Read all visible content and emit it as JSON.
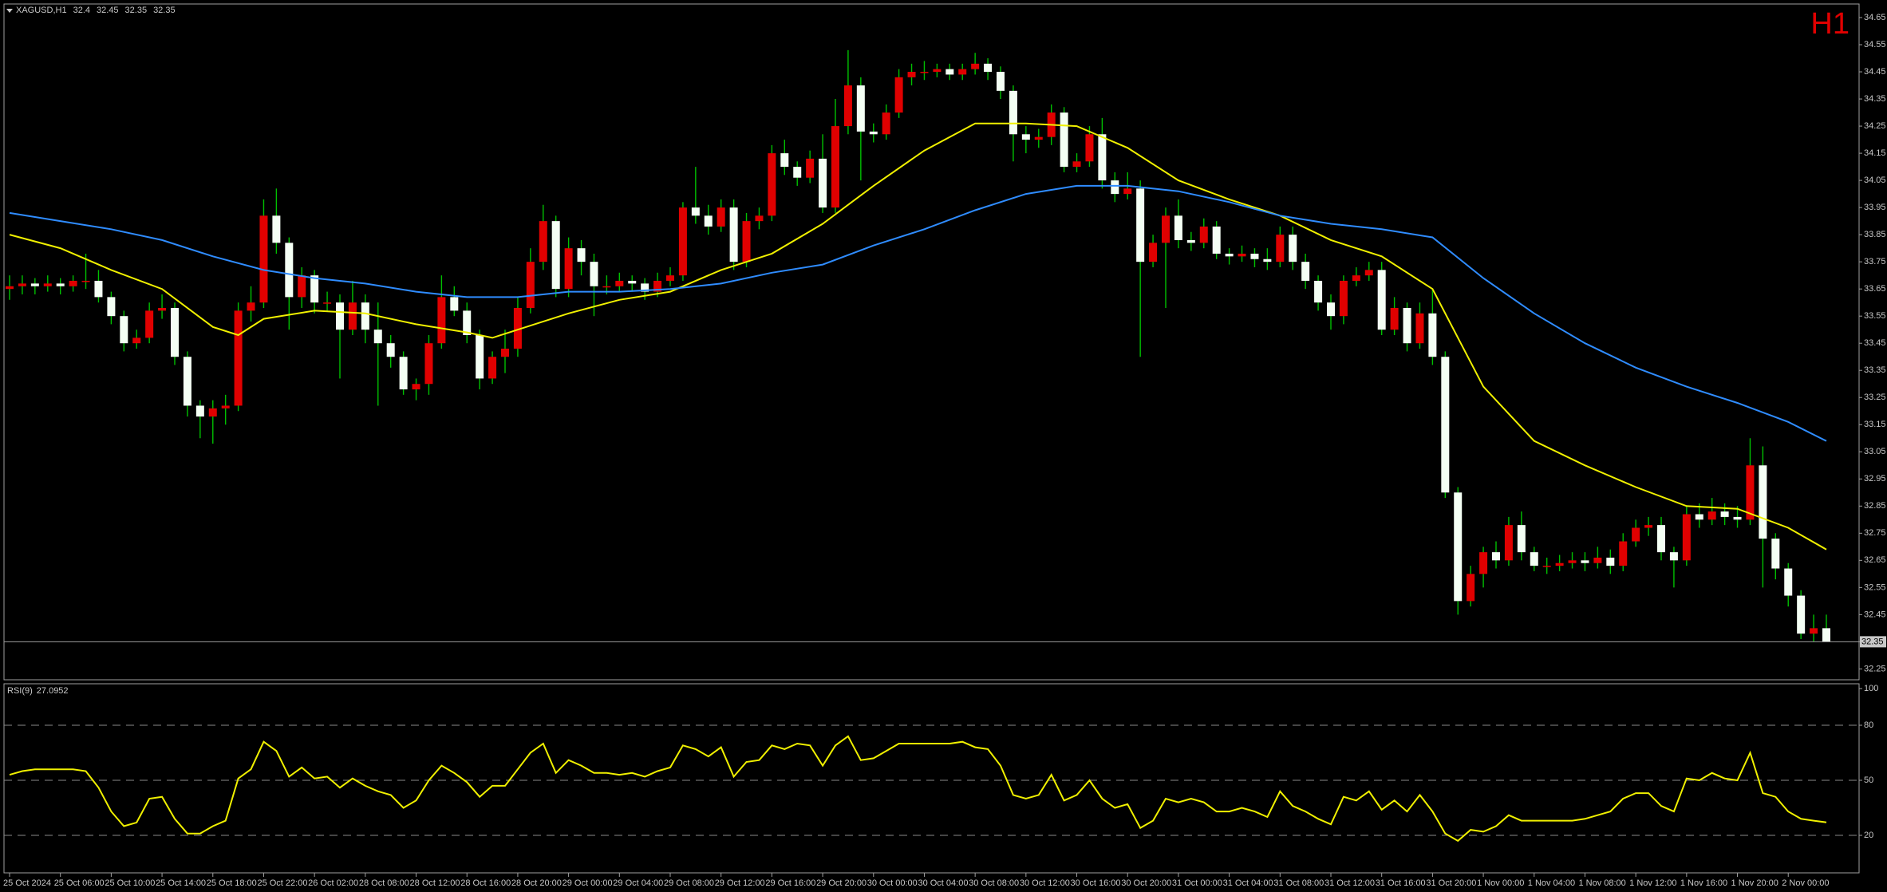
{
  "chart_data": [
    {
      "type": "candlestick",
      "title": "XAGUSD,H1",
      "badge": "H1",
      "open": [
        33.65,
        33.66,
        33.67,
        33.66,
        33.67,
        33.66,
        33.68,
        33.68,
        33.62,
        33.55,
        33.45,
        33.47,
        33.57,
        33.58,
        33.4,
        33.22,
        33.18,
        33.21,
        33.22,
        33.57,
        33.6,
        33.92,
        33.82,
        33.62,
        33.7,
        33.6,
        33.6,
        33.5,
        33.6,
        33.5,
        33.45,
        33.4,
        33.28,
        33.3,
        33.45,
        33.62,
        33.57,
        33.48,
        33.32,
        33.4,
        33.43,
        33.58,
        33.75,
        33.9,
        33.65,
        33.8,
        33.75,
        33.66,
        33.66,
        33.68,
        33.67,
        33.64,
        33.68,
        33.7,
        33.95,
        33.92,
        33.88,
        33.95,
        33.75,
        33.9,
        33.92,
        34.15,
        34.1,
        34.06,
        34.13,
        33.95,
        34.25,
        34.4,
        34.23,
        34.22,
        34.3,
        34.43,
        34.45,
        34.45,
        34.46,
        34.44,
        34.46,
        34.48,
        34.45,
        34.38,
        34.22,
        34.2,
        34.21,
        34.3,
        34.1,
        34.12,
        34.22,
        34.05,
        34.0,
        34.02,
        33.75,
        33.82,
        33.92,
        33.83,
        33.82,
        33.88,
        33.78,
        33.77,
        33.78,
        33.76,
        33.75,
        33.85,
        33.75,
        33.68,
        33.6,
        33.55,
        33.68,
        33.7,
        33.72,
        33.5,
        33.58,
        33.45,
        33.56,
        33.4,
        32.9,
        32.5,
        32.6,
        32.68,
        32.65,
        32.78,
        32.68,
        32.63,
        32.63,
        32.64,
        32.65,
        32.64,
        32.66,
        32.63,
        32.72,
        32.77,
        32.78,
        32.68,
        32.65,
        32.82,
        32.8,
        32.83,
        32.81,
        32.8,
        33.0,
        32.73,
        32.62,
        32.52,
        32.38,
        32.4
      ],
      "high": [
        33.7,
        33.7,
        33.69,
        33.7,
        33.69,
        33.7,
        33.78,
        33.72,
        33.64,
        33.57,
        33.5,
        33.6,
        33.63,
        33.6,
        33.42,
        33.24,
        33.24,
        33.26,
        33.6,
        33.66,
        33.98,
        34.02,
        33.84,
        33.73,
        33.72,
        33.64,
        33.63,
        33.68,
        33.63,
        33.6,
        33.48,
        33.42,
        33.32,
        33.48,
        33.7,
        33.66,
        33.6,
        33.5,
        33.42,
        33.5,
        33.62,
        33.8,
        33.96,
        33.92,
        33.84,
        33.83,
        33.78,
        33.7,
        33.71,
        33.7,
        33.69,
        33.71,
        33.73,
        33.97,
        34.1,
        33.96,
        33.98,
        33.98,
        33.93,
        33.95,
        34.18,
        34.2,
        34.12,
        34.16,
        34.22,
        34.35,
        34.53,
        34.43,
        34.26,
        34.33,
        34.46,
        34.48,
        34.49,
        34.48,
        34.48,
        34.48,
        34.52,
        34.5,
        34.47,
        34.4,
        34.25,
        34.24,
        34.33,
        34.32,
        34.15,
        34.25,
        34.28,
        34.08,
        34.08,
        34.05,
        33.85,
        33.95,
        33.98,
        33.86,
        33.91,
        33.9,
        33.8,
        33.81,
        33.8,
        33.8,
        33.88,
        33.88,
        33.78,
        33.7,
        33.63,
        33.7,
        33.73,
        33.75,
        33.75,
        33.62,
        33.6,
        33.6,
        33.65,
        33.42,
        32.92,
        32.63,
        32.7,
        32.72,
        32.81,
        32.83,
        32.7,
        32.66,
        32.67,
        32.68,
        32.68,
        32.7,
        32.69,
        32.75,
        32.8,
        32.81,
        32.81,
        32.7,
        32.85,
        32.86,
        32.88,
        32.86,
        32.85,
        33.1,
        33.07,
        32.75,
        32.64,
        32.54,
        32.45,
        32.45
      ],
      "low": [
        33.61,
        33.63,
        33.63,
        33.64,
        33.63,
        33.64,
        33.65,
        33.6,
        33.52,
        33.42,
        33.43,
        33.45,
        33.54,
        33.37,
        33.18,
        33.1,
        33.08,
        33.15,
        33.2,
        33.53,
        33.58,
        33.78,
        33.5,
        33.58,
        33.56,
        33.57,
        33.32,
        33.48,
        33.45,
        33.22,
        33.36,
        33.26,
        33.24,
        33.26,
        33.43,
        33.55,
        33.45,
        33.28,
        33.3,
        33.34,
        33.4,
        33.56,
        33.72,
        33.62,
        33.62,
        33.7,
        33.55,
        33.63,
        33.64,
        33.64,
        33.61,
        33.62,
        33.66,
        33.68,
        33.89,
        33.85,
        33.86,
        33.72,
        33.73,
        33.87,
        33.9,
        34.07,
        34.03,
        34.04,
        33.93,
        33.93,
        34.22,
        34.05,
        34.19,
        34.2,
        34.28,
        34.4,
        34.42,
        34.43,
        34.42,
        34.42,
        34.44,
        34.42,
        34.35,
        34.12,
        34.15,
        34.17,
        34.18,
        34.08,
        34.08,
        34.1,
        34.02,
        33.97,
        33.98,
        33.4,
        33.73,
        33.58,
        33.8,
        33.79,
        33.8,
        33.76,
        33.74,
        33.75,
        33.73,
        33.72,
        33.73,
        33.72,
        33.65,
        33.57,
        33.5,
        33.52,
        33.66,
        33.68,
        33.48,
        33.48,
        33.42,
        33.43,
        33.37,
        32.88,
        32.45,
        32.48,
        32.55,
        32.62,
        32.63,
        32.65,
        32.61,
        32.6,
        32.61,
        32.62,
        32.61,
        32.62,
        32.6,
        32.61,
        32.7,
        32.74,
        32.65,
        32.55,
        32.63,
        32.77,
        32.78,
        32.78,
        32.77,
        32.78,
        32.55,
        32.58,
        32.48,
        32.36,
        32.35,
        32.35
      ],
      "close": [
        33.66,
        33.67,
        33.66,
        33.67,
        33.66,
        33.68,
        33.68,
        33.62,
        33.55,
        33.45,
        33.47,
        33.57,
        33.58,
        33.4,
        33.22,
        33.18,
        33.21,
        33.22,
        33.57,
        33.6,
        33.92,
        33.82,
        33.62,
        33.7,
        33.6,
        33.6,
        33.5,
        33.6,
        33.5,
        33.45,
        33.4,
        33.28,
        33.3,
        33.45,
        33.62,
        33.57,
        33.48,
        33.32,
        33.4,
        33.43,
        33.58,
        33.75,
        33.9,
        33.65,
        33.8,
        33.75,
        33.66,
        33.66,
        33.68,
        33.67,
        33.64,
        33.68,
        33.7,
        33.95,
        33.92,
        33.88,
        33.95,
        33.75,
        33.9,
        33.92,
        34.15,
        34.1,
        34.06,
        34.13,
        33.95,
        34.25,
        34.4,
        34.23,
        34.22,
        34.3,
        34.43,
        34.45,
        34.45,
        34.46,
        34.44,
        34.46,
        34.48,
        34.45,
        34.38,
        34.22,
        34.2,
        34.21,
        34.3,
        34.1,
        34.12,
        34.22,
        34.05,
        34.0,
        34.02,
        33.75,
        33.82,
        33.92,
        33.83,
        33.82,
        33.88,
        33.78,
        33.77,
        33.78,
        33.76,
        33.75,
        33.85,
        33.75,
        33.68,
        33.6,
        33.55,
        33.68,
        33.7,
        33.72,
        33.5,
        33.58,
        33.45,
        33.56,
        33.4,
        32.9,
        32.5,
        32.6,
        32.68,
        32.65,
        32.78,
        32.68,
        32.63,
        32.63,
        32.64,
        32.65,
        32.64,
        32.66,
        32.63,
        32.72,
        32.77,
        32.78,
        32.68,
        32.65,
        32.82,
        32.8,
        32.83,
        32.81,
        32.8,
        33.0,
        32.73,
        32.62,
        32.52,
        32.38,
        32.4,
        32.35
      ],
      "bull_color": "#e00000",
      "bear_color": "#f4fff4",
      "wick_color": "#00c000",
      "series": [
        {
          "color": "#f0f000",
          "x": [
            0,
            4,
            8,
            12,
            16,
            18,
            20,
            24,
            28,
            32,
            36,
            38,
            40,
            44,
            48,
            52,
            56,
            60,
            64,
            68,
            72,
            76,
            80,
            84,
            88,
            92,
            96,
            100,
            104,
            108,
            112,
            116,
            120,
            124,
            128,
            132,
            136,
            140,
            143
          ],
          "values": [
            33.85,
            33.8,
            33.72,
            33.65,
            33.51,
            33.48,
            33.54,
            33.57,
            33.56,
            33.52,
            33.49,
            33.47,
            33.5,
            33.56,
            33.61,
            33.64,
            33.72,
            33.78,
            33.89,
            34.03,
            34.16,
            34.26,
            34.26,
            34.25,
            34.17,
            34.05,
            33.98,
            33.92,
            33.83,
            33.77,
            33.65,
            33.29,
            33.09,
            33.0,
            32.92,
            32.85,
            32.84,
            32.77,
            32.69
          ]
        },
        {
          "color": "#2f8cff",
          "x": [
            0,
            4,
            8,
            12,
            16,
            20,
            24,
            28,
            32,
            36,
            40,
            44,
            48,
            52,
            56,
            60,
            64,
            68,
            72,
            76,
            80,
            84,
            88,
            92,
            96,
            100,
            104,
            108,
            112,
            116,
            120,
            124,
            128,
            132,
            136,
            140,
            143
          ],
          "values": [
            33.93,
            33.9,
            33.87,
            33.83,
            33.77,
            33.72,
            33.69,
            33.67,
            33.64,
            33.62,
            33.62,
            33.64,
            33.64,
            33.65,
            33.67,
            33.71,
            33.74,
            33.81,
            33.87,
            33.94,
            34.0,
            34.03,
            34.03,
            34.01,
            33.97,
            33.92,
            33.89,
            33.87,
            33.84,
            33.69,
            33.56,
            33.45,
            33.36,
            33.29,
            33.23,
            33.16,
            33.09
          ]
        }
      ],
      "ylim": [
        32.21,
        34.7
      ],
      "yticks": [
        34.65,
        34.55,
        34.45,
        34.35,
        34.25,
        34.15,
        34.05,
        33.95,
        33.85,
        33.75,
        33.65,
        33.55,
        33.45,
        33.35,
        33.25,
        33.15,
        33.05,
        32.95,
        32.85,
        32.75,
        32.65,
        32.55,
        32.45,
        32.35,
        32.25
      ],
      "xticks": [
        {
          "value": 0,
          "label": "25 Oct 2024"
        },
        {
          "value": 4,
          "label": "25 Oct 06:00"
        },
        {
          "value": 8,
          "label": "25 Oct 10:00"
        },
        {
          "value": 12,
          "label": "25 Oct 14:00"
        },
        {
          "value": 16,
          "label": "25 Oct 18:00"
        },
        {
          "value": 20,
          "label": "25 Oct 22:00"
        },
        {
          "value": 24,
          "label": "26 Oct 02:00"
        },
        {
          "value": 28,
          "label": "28 Oct 08:00"
        },
        {
          "value": 32,
          "label": "28 Oct 12:00"
        },
        {
          "value": 36,
          "label": "28 Oct 16:00"
        },
        {
          "value": 40,
          "label": "28 Oct 20:00"
        },
        {
          "value": 44,
          "label": "29 Oct 00:00"
        },
        {
          "value": 48,
          "label": "29 Oct 04:00"
        },
        {
          "value": 52,
          "label": "29 Oct 08:00"
        },
        {
          "value": 56,
          "label": "29 Oct 12:00"
        },
        {
          "value": 60,
          "label": "29 Oct 16:00"
        },
        {
          "value": 64,
          "label": "29 Oct 20:00"
        },
        {
          "value": 68,
          "label": "30 Oct 00:00"
        },
        {
          "value": 72,
          "label": "30 Oct 04:00"
        },
        {
          "value": 76,
          "label": "30 Oct 08:00"
        },
        {
          "value": 80,
          "label": "30 Oct 12:00"
        },
        {
          "value": 84,
          "label": "30 Oct 16:00"
        },
        {
          "value": 88,
          "label": "30 Oct 20:00"
        },
        {
          "value": 92,
          "label": "31 Oct 00:00"
        },
        {
          "value": 96,
          "label": "31 Oct 04:00"
        },
        {
          "value": 100,
          "label": "31 Oct 08:00"
        },
        {
          "value": 104,
          "label": "31 Oct 12:00"
        },
        {
          "value": 108,
          "label": "31 Oct 16:00"
        },
        {
          "value": 112,
          "label": "31 Oct 20:00"
        },
        {
          "value": 116,
          "label": "1 Nov 00:00"
        },
        {
          "value": 120,
          "label": "1 Nov 04:00"
        },
        {
          "value": 124,
          "label": "1 Nov 08:00"
        },
        {
          "value": 128,
          "label": "1 Nov 12:00"
        },
        {
          "value": 132,
          "label": "1 Nov 16:00"
        },
        {
          "value": 136,
          "label": "1 Nov 20:00"
        },
        {
          "value": 140,
          "label": "2 Nov 00:00"
        }
      ]
    },
    {
      "type": "line",
      "title": "RSI(9)",
      "color": "#f0f000",
      "values": [
        53,
        55,
        56,
        56,
        56,
        56,
        55,
        46,
        33,
        25,
        27,
        40,
        41,
        29,
        21,
        21,
        25,
        28,
        51,
        56,
        71,
        66,
        52,
        57,
        51,
        52,
        46,
        51,
        47,
        44,
        42,
        35,
        39,
        50,
        58,
        54,
        49,
        41,
        47,
        47,
        56,
        65,
        70,
        54,
        61,
        58,
        54,
        54,
        53,
        54,
        52,
        55,
        57,
        69,
        67,
        63,
        68,
        52,
        60,
        61,
        69,
        67,
        70,
        69,
        58,
        69,
        74,
        61,
        62,
        66,
        70,
        70,
        70,
        70,
        70,
        71,
        68,
        67,
        58,
        42,
        40,
        42,
        53,
        39,
        42,
        50,
        40,
        35,
        37,
        24,
        28,
        40,
        38,
        40,
        38,
        33,
        33,
        35,
        33,
        30,
        44,
        36,
        33,
        29,
        26,
        41,
        39,
        44,
        34,
        39,
        33,
        42,
        33,
        21,
        17,
        23,
        22,
        25,
        31,
        28,
        28,
        28,
        28,
        28,
        29,
        31,
        33,
        40,
        43,
        43,
        36,
        33,
        51,
        50,
        54,
        51,
        50,
        65,
        43,
        41,
        33,
        29,
        28,
        27.0952
      ],
      "ylim": [
        0,
        100
      ],
      "yticks": [
        100,
        80,
        50,
        20
      ],
      "levels": [
        80,
        50,
        20
      ]
    }
  ]
}
